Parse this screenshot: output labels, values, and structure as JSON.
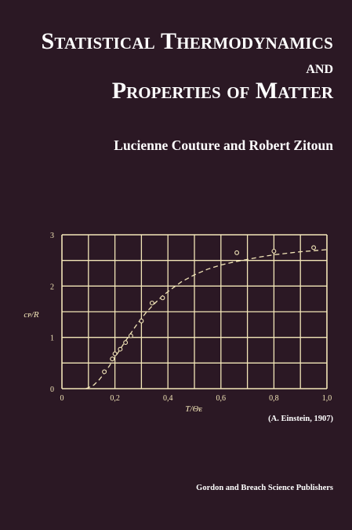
{
  "title": {
    "line1": "Statistical Thermodynamics",
    "line2": "and",
    "line3": "Properties of Matter"
  },
  "authors": "Lucienne Couture and Robert Zitoun",
  "credit": "(A. Einstein, 1907)",
  "publisher": "Gordon and Breach Science Publishers",
  "colors": {
    "background": "#2b1824",
    "plot_lines": "#f3e6b8",
    "text": "#ffffff"
  },
  "chart_data": {
    "type": "scatter",
    "xlabel": "T/Θ_E",
    "ylabel": "c_P/R",
    "xlim": [
      0,
      1.0
    ],
    "ylim": [
      0,
      3
    ],
    "x_ticks": [
      {
        "value": 0,
        "label": "0"
      },
      {
        "value": 0.2,
        "label": "0,2"
      },
      {
        "value": 0.4,
        "label": "0,4"
      },
      {
        "value": 0.6,
        "label": "0,6"
      },
      {
        "value": 0.8,
        "label": "0,8"
      },
      {
        "value": 1.0,
        "label": "1,0"
      }
    ],
    "y_ticks": [
      {
        "value": 0,
        "label": "0"
      },
      {
        "value": 1,
        "label": "1"
      },
      {
        "value": 2,
        "label": "2"
      },
      {
        "value": 3,
        "label": "3"
      }
    ],
    "grid": true,
    "series": [
      {
        "kind": "points",
        "x": [
          0.16,
          0.19,
          0.2,
          0.22,
          0.24,
          0.26,
          0.3,
          0.34,
          0.38,
          0.66,
          0.8,
          0.95
        ],
        "y": [
          0.33,
          0.58,
          0.68,
          0.77,
          0.9,
          1.03,
          1.32,
          1.67,
          1.77,
          2.65,
          2.68,
          2.75
        ]
      },
      {
        "kind": "curve",
        "x": [
          0.09,
          0.1,
          0.12,
          0.14,
          0.16,
          0.18,
          0.2,
          0.22,
          0.24,
          0.26,
          0.28,
          0.3,
          0.32,
          0.35,
          0.38,
          0.41,
          0.45,
          0.5,
          0.55,
          0.6,
          0.65,
          0.7,
          0.75,
          0.8,
          0.85,
          0.9,
          0.95,
          1.0
        ],
        "y": [
          0.0,
          0.02,
          0.07,
          0.17,
          0.3,
          0.45,
          0.61,
          0.77,
          0.93,
          1.08,
          1.23,
          1.37,
          1.5,
          1.66,
          1.81,
          1.93,
          2.08,
          2.22,
          2.33,
          2.41,
          2.47,
          2.52,
          2.57,
          2.61,
          2.64,
          2.67,
          2.69,
          2.71
        ]
      }
    ]
  }
}
